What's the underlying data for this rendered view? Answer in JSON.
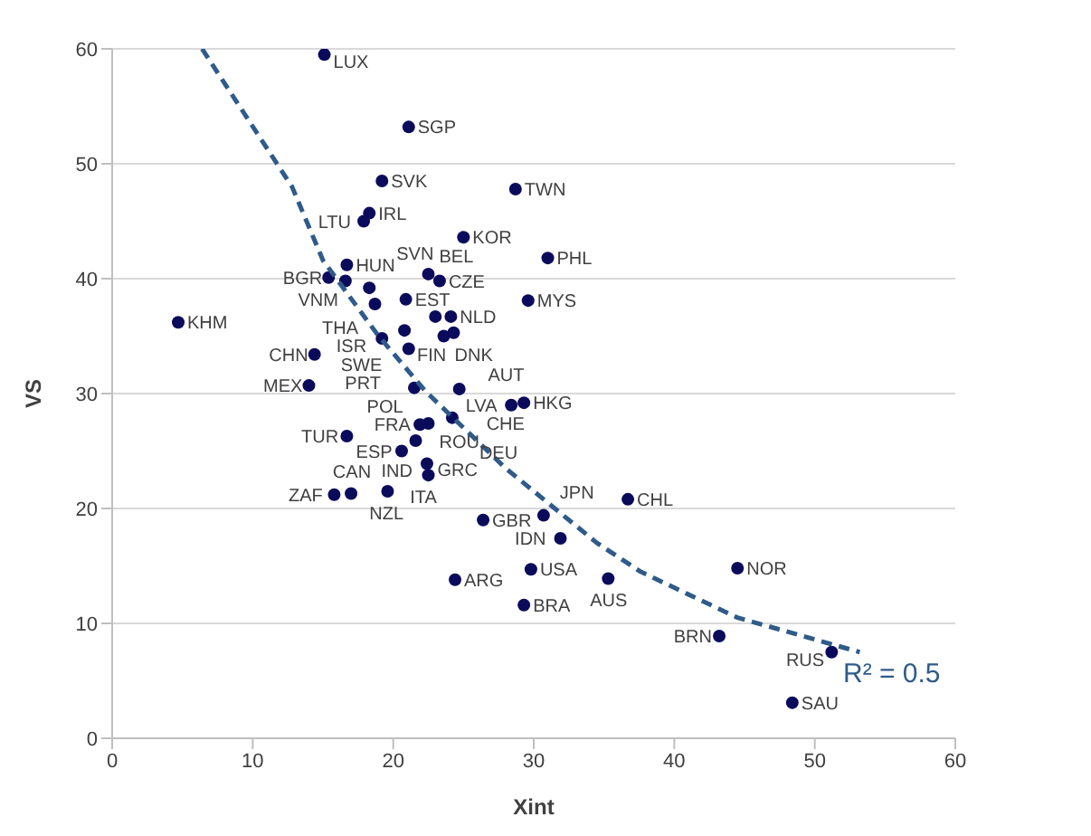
{
  "chart_data": {
    "type": "scatter",
    "xlabel": "Xint",
    "ylabel": "VS",
    "xlim": [
      0,
      60
    ],
    "ylim": [
      0,
      60
    ],
    "xticks": [
      0,
      10,
      20,
      30,
      40,
      50,
      60
    ],
    "yticks": [
      0,
      10,
      20,
      30,
      40,
      50,
      60
    ],
    "grid": "y",
    "marker": "circle",
    "series": [
      {
        "type": "scatter",
        "color": "#0b0b5c",
        "x": [
          15.1,
          21.1,
          19.2,
          28.7,
          18.3,
          17.9,
          25.0,
          31.0,
          16.7,
          15.4,
          16.6,
          18.3,
          18.7,
          20.9,
          22.5,
          23.3,
          24.1,
          23.0,
          29.6,
          19.2,
          20.8,
          21.1,
          23.6,
          24.3,
          4.7,
          14.4,
          14.0,
          21.5,
          24.7,
          28.4,
          29.3,
          21.9,
          22.5,
          24.2,
          16.7,
          21.6,
          20.6,
          22.4,
          22.5,
          15.8,
          17.0,
          19.6,
          26.4,
          30.7,
          31.9,
          29.8,
          24.4,
          29.3,
          36.7,
          35.3,
          44.5,
          43.2,
          51.2,
          48.4
        ],
        "values": [
          59.5,
          53.2,
          48.5,
          47.8,
          45.7,
          45.0,
          43.6,
          41.8,
          41.2,
          40.1,
          39.8,
          39.2,
          37.8,
          38.2,
          40.4,
          39.8,
          36.7,
          36.7,
          38.1,
          34.8,
          35.5,
          33.9,
          35.0,
          35.3,
          36.2,
          33.4,
          30.7,
          30.5,
          30.4,
          29.0,
          29.2,
          27.3,
          27.4,
          27.9,
          26.3,
          25.9,
          25.0,
          23.9,
          22.9,
          21.2,
          21.3,
          21.5,
          19.0,
          19.4,
          17.4,
          14.7,
          13.8,
          11.6,
          20.8,
          13.9,
          14.8,
          8.9,
          7.5,
          3.1
        ]
      },
      {
        "type": "line",
        "color": "#2f5b8a",
        "line_style": "dashed",
        "marker": "none",
        "x": [
          6.4,
          12.8,
          15.0,
          18.9,
          22.3,
          28.0,
          34.5,
          37.6,
          44.5,
          53.2
        ],
        "values": [
          60,
          48,
          41.6,
          35.1,
          30.2,
          23.5,
          17.0,
          14.5,
          10.5,
          7.5
        ]
      }
    ],
    "annotations": [
      {
        "text": "LUX",
        "x": 15.1,
        "y": 59.5
      },
      {
        "text": "SGP",
        "x": 21.1,
        "y": 53.2
      },
      {
        "text": "SVK",
        "x": 19.2,
        "y": 48.5
      },
      {
        "text": "TWN",
        "x": 28.7,
        "y": 47.8
      },
      {
        "text": "IRL",
        "x": 18.3,
        "y": 45.7
      },
      {
        "text": "LTU",
        "x": 17.9,
        "y": 45.0
      },
      {
        "text": "KOR",
        "x": 25.0,
        "y": 43.6
      },
      {
        "text": "PHL",
        "x": 31.0,
        "y": 41.8
      },
      {
        "text": "HUN",
        "x": 16.7,
        "y": 41.2
      },
      {
        "text": "BGR",
        "x": 15.4,
        "y": 40.1
      },
      {
        "text": "VNM",
        "x": 16.6,
        "y": 39.8
      },
      {
        "text": "SVN",
        "x": 18.3,
        "y": 39.2
      },
      {
        "text": "THA",
        "x": 18.7,
        "y": 37.8
      },
      {
        "text": "EST",
        "x": 20.9,
        "y": 38.2
      },
      {
        "text": "BEL",
        "x": 22.5,
        "y": 40.4
      },
      {
        "text": "CZE",
        "x": 23.3,
        "y": 39.8
      },
      {
        "text": "NLD",
        "x": 24.1,
        "y": 36.7
      },
      {
        "text": "FIN",
        "x": 23.0,
        "y": 36.7
      },
      {
        "text": "MYS",
        "x": 29.6,
        "y": 38.1
      },
      {
        "text": "ISR",
        "x": 19.2,
        "y": 34.8
      },
      {
        "text": "SWE",
        "x": 20.8,
        "y": 35.5
      },
      {
        "text": "PRT",
        "x": 21.1,
        "y": 33.9
      },
      {
        "text": "DNK",
        "x": 23.6,
        "y": 35.0
      },
      {
        "text": "AUT",
        "x": 24.3,
        "y": 35.3
      },
      {
        "text": "KHM",
        "x": 4.7,
        "y": 36.2
      },
      {
        "text": "CHN",
        "x": 14.4,
        "y": 33.4
      },
      {
        "text": "MEX",
        "x": 14.0,
        "y": 30.7
      },
      {
        "text": "POL",
        "x": 21.5,
        "y": 30.5
      },
      {
        "text": "CHE",
        "x": 24.7,
        "y": 30.4
      },
      {
        "text": "LVA",
        "x": 28.4,
        "y": 29.0
      },
      {
        "text": "HKG",
        "x": 29.3,
        "y": 29.2
      },
      {
        "text": "FRA",
        "x": 21.9,
        "y": 27.3
      },
      {
        "text": "ROU",
        "x": 22.5,
        "y": 27.4
      },
      {
        "text": "DEU",
        "x": 24.2,
        "y": 27.9
      },
      {
        "text": "TUR",
        "x": 16.7,
        "y": 26.3
      },
      {
        "text": "GRC",
        "x": 21.6,
        "y": 25.9
      },
      {
        "text": "ESP",
        "x": 20.6,
        "y": 25.0
      },
      {
        "text": "IND",
        "x": 22.4,
        "y": 23.9
      },
      {
        "text": "ITA",
        "x": 22.5,
        "y": 22.9
      },
      {
        "text": "ZAF",
        "x": 15.8,
        "y": 21.2
      },
      {
        "text": "CAN",
        "x": 17.0,
        "y": 21.3
      },
      {
        "text": "NZL",
        "x": 19.6,
        "y": 21.5
      },
      {
        "text": "GBR",
        "x": 26.4,
        "y": 19.0
      },
      {
        "text": "JPN",
        "x": 30.7,
        "y": 19.4
      },
      {
        "text": "IDN",
        "x": 31.9,
        "y": 17.4
      },
      {
        "text": "USA",
        "x": 29.8,
        "y": 14.7
      },
      {
        "text": "ARG",
        "x": 24.4,
        "y": 13.8
      },
      {
        "text": "BRA",
        "x": 29.3,
        "y": 11.6
      },
      {
        "text": "CHL",
        "x": 36.7,
        "y": 20.8
      },
      {
        "text": "AUS",
        "x": 35.3,
        "y": 13.9
      },
      {
        "text": "NOR",
        "x": 44.5,
        "y": 14.8
      },
      {
        "text": "BRN",
        "x": 43.2,
        "y": 8.9
      },
      {
        "text": "RUS",
        "x": 51.2,
        "y": 7.5
      },
      {
        "text": "SAU",
        "x": 48.4,
        "y": 3.1
      },
      "R² = 0.5"
    ]
  }
}
